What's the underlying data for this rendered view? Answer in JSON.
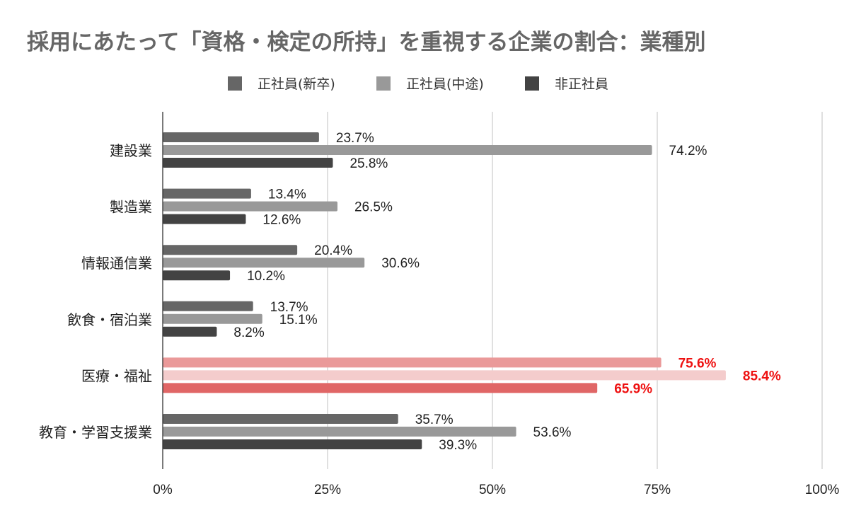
{
  "chart_data": {
    "type": "bar",
    "orientation": "horizontal",
    "title": "採用にあたって「資格・検定の所持」を重視する企業の割合：業種別",
    "categories": [
      "建設業",
      "製造業",
      "情報通信業",
      "飲食・宿泊業",
      "医療・福祉",
      "教育・学習支援業"
    ],
    "series": [
      {
        "name": "正社員(新卒)",
        "color": "#666666",
        "values": [
          23.7,
          13.4,
          20.4,
          13.7,
          75.6,
          35.7
        ]
      },
      {
        "name": "正社員(中途)",
        "color": "#999999",
        "values": [
          74.2,
          26.5,
          30.6,
          15.1,
          85.4,
          53.6
        ]
      },
      {
        "name": "非正社員",
        "color": "#434343",
        "values": [
          25.8,
          12.6,
          10.2,
          8.2,
          65.9,
          39.3
        ]
      }
    ],
    "value_labels": [
      [
        "23.7%",
        "74.2%",
        "25.8%"
      ],
      [
        "13.4%",
        "26.5%",
        "12.6%"
      ],
      [
        "20.4%",
        "30.6%",
        "10.2%"
      ],
      [
        "13.7%",
        "15.1%",
        "8.2%"
      ],
      [
        "75.6%",
        "85.4%",
        "65.9%"
      ],
      [
        "35.7%",
        "53.6%",
        "39.3%"
      ]
    ],
    "highlight": {
      "category_index": 4,
      "colors": [
        "#ea9999",
        "#f4cccc",
        "#e06666"
      ],
      "label_color": "#ee1111"
    },
    "x_ticks": [
      0,
      25,
      50,
      75,
      100
    ],
    "x_tick_labels": [
      "0%",
      "25%",
      "50%",
      "75%",
      "100%"
    ],
    "xlim": [
      0,
      100
    ],
    "grid": true,
    "legend_position": "top-center",
    "xlabel": "",
    "ylabel": ""
  }
}
